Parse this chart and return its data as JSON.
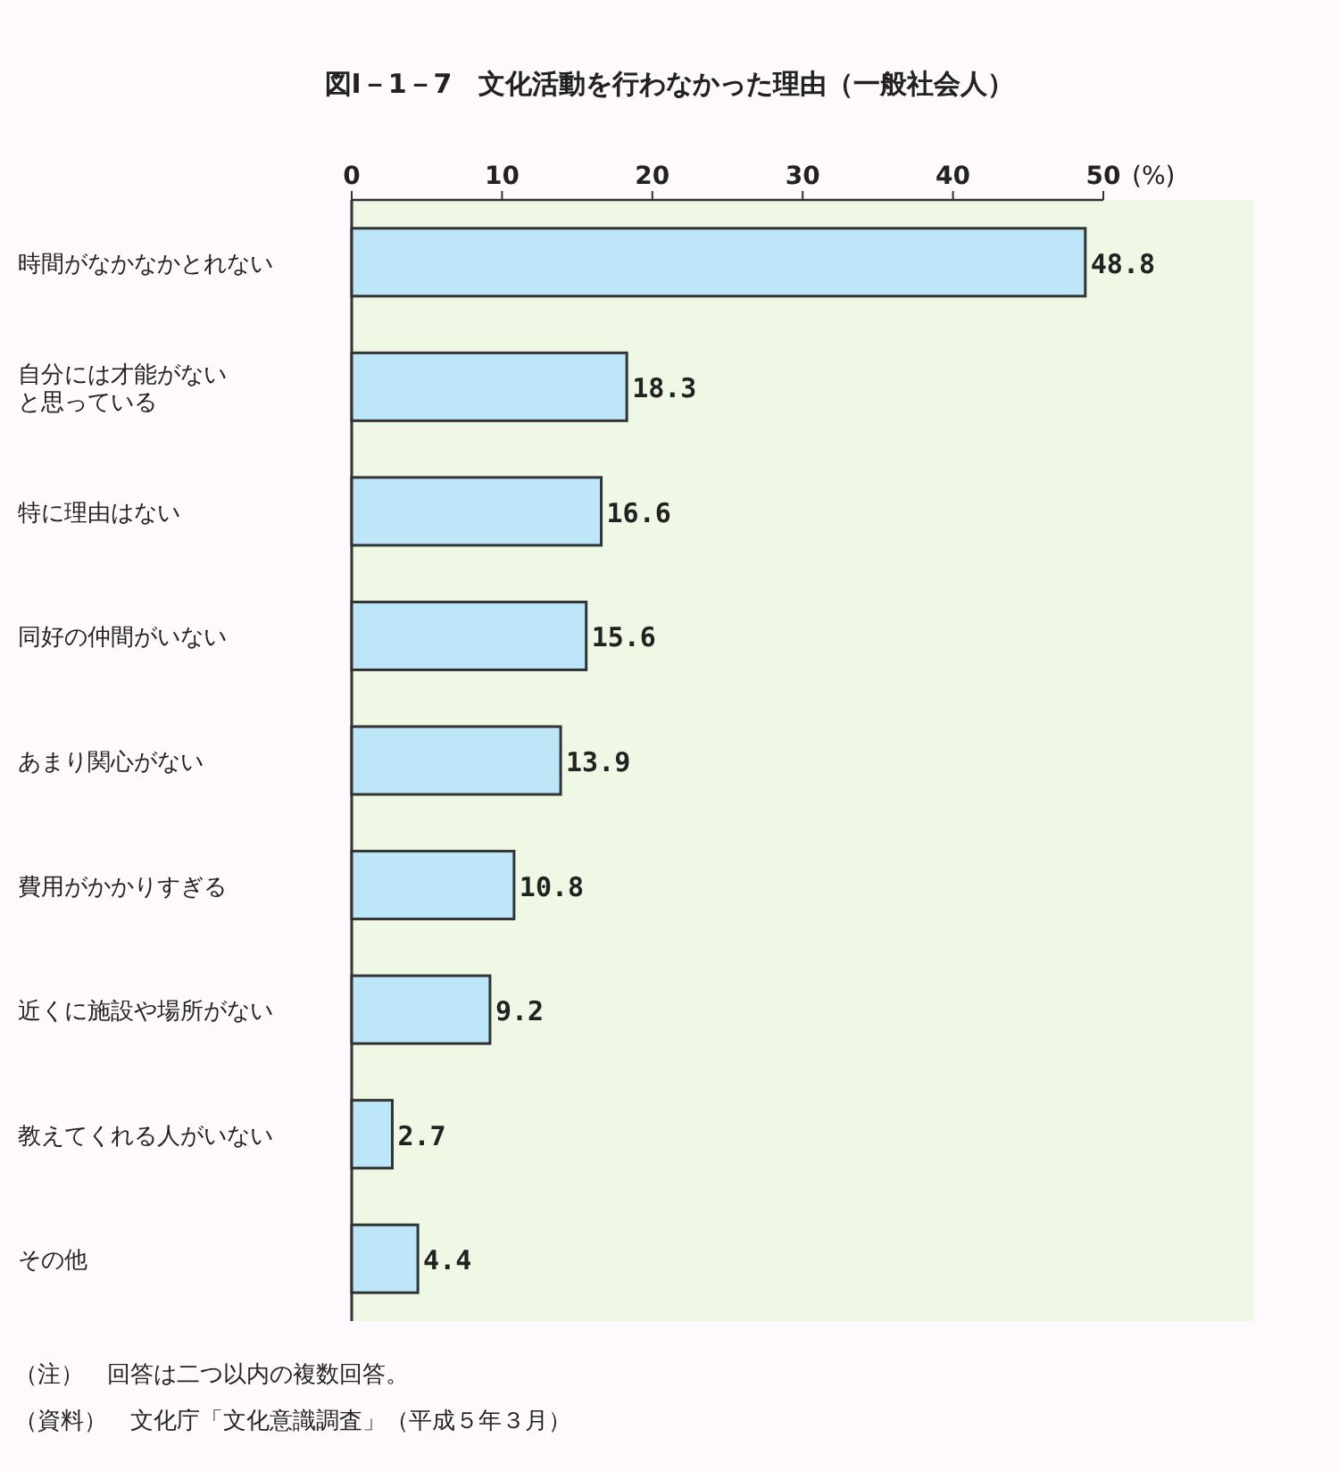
{
  "chart_data": {
    "type": "bar",
    "orientation": "horizontal",
    "title": "図Ⅰ－1－7　文化活動を行わなかった理由（一般社会人）",
    "categories": [
      "時間がなかなかとれない",
      "自分には才能がないと思っている",
      "特に理由はない",
      "同好の仲間がいない",
      "あまり関心がない",
      "費用がかかりすぎる",
      "近くに施設や場所がない",
      "教えてくれる人がいない",
      "その他"
    ],
    "values": [
      48.8,
      18.3,
      16.6,
      15.6,
      13.9,
      10.8,
      9.2,
      2.7,
      4.4
    ],
    "color": "#bde6f8",
    "xlim": [
      0,
      50
    ],
    "xticks": [
      0,
      10,
      20,
      30,
      40,
      50
    ],
    "xlabel": "(%)",
    "data_labels": true,
    "grid": false,
    "annotations": [
      "（注）　回答は二つ以内の複数回答。",
      "（資料）　文化庁「文化意識調査」（平成５年３月）"
    ]
  }
}
